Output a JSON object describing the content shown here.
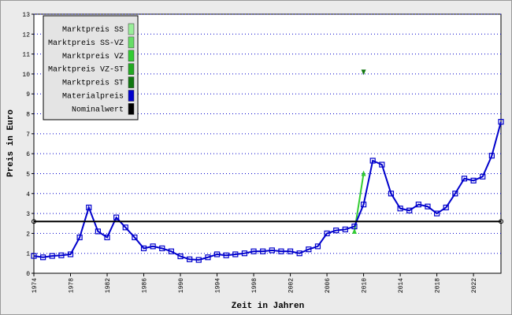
{
  "chart_data": {
    "type": "line",
    "x_label": "Zeit in Jahren",
    "y_label": "Preis in Euro",
    "xlim": [
      1974,
      2025
    ],
    "ylim": [
      0,
      13
    ],
    "xticks": [
      1974,
      1978,
      1982,
      1986,
      1990,
      1994,
      1998,
      2002,
      2006,
      2010,
      2014,
      2018,
      2022
    ],
    "yticks": [
      0,
      1,
      2,
      3,
      4,
      5,
      6,
      7,
      8,
      9,
      10,
      11,
      12,
      13
    ],
    "grid": true,
    "legend": "upper left",
    "series": [
      {
        "name": "Marktpreis SS",
        "color": "#99ee99",
        "x": [],
        "values": []
      },
      {
        "name": "Marktpreis SS-VZ",
        "color": "#66dd66",
        "x": [],
        "values": []
      },
      {
        "name": "Marktpreis VZ",
        "color": "#33cc33",
        "marker": "triangle-up",
        "x": [
          2009,
          2010
        ],
        "values": [
          2.1,
          5.0
        ]
      },
      {
        "name": "Marktpreis VZ-ST",
        "color": "#22aa22",
        "x": [],
        "values": []
      },
      {
        "name": "Marktpreis ST",
        "color": "#117711",
        "marker": "triangle-down",
        "x": [
          2010
        ],
        "values": [
          10.1
        ]
      },
      {
        "name": "Materialpreis",
        "color": "#0000cc",
        "marker": "square",
        "x": [
          1974,
          1975,
          1976,
          1977,
          1978,
          1979,
          1980,
          1981,
          1982,
          1983,
          1984,
          1985,
          1986,
          1987,
          1988,
          1989,
          1990,
          1991,
          1992,
          1993,
          1994,
          1995,
          1996,
          1997,
          1998,
          1999,
          2000,
          2001,
          2002,
          2003,
          2004,
          2005,
          2006,
          2007,
          2008,
          2009,
          2010,
          2011,
          2012,
          2013,
          2014,
          2015,
          2016,
          2017,
          2018,
          2019,
          2020,
          2021,
          2022,
          2023,
          2024,
          2025
        ],
        "values": [
          0.87,
          0.8,
          0.87,
          0.9,
          0.95,
          1.8,
          3.3,
          2.1,
          1.8,
          2.8,
          2.3,
          1.8,
          1.25,
          1.35,
          1.25,
          1.1,
          0.85,
          0.7,
          0.67,
          0.8,
          0.95,
          0.9,
          0.95,
          1.0,
          1.1,
          1.1,
          1.15,
          1.1,
          1.1,
          1.0,
          1.2,
          1.35,
          2.0,
          2.15,
          2.2,
          2.35,
          3.45,
          5.65,
          5.45,
          4.0,
          3.25,
          3.15,
          3.45,
          3.35,
          3.0,
          3.3,
          4.0,
          4.75,
          4.65,
          4.85,
          5.9,
          7.6
        ]
      },
      {
        "name": "Nominalwert",
        "color": "#000000",
        "marker": "circle",
        "x": [
          1974,
          2025
        ],
        "values": [
          2.6,
          2.6
        ]
      }
    ]
  }
}
